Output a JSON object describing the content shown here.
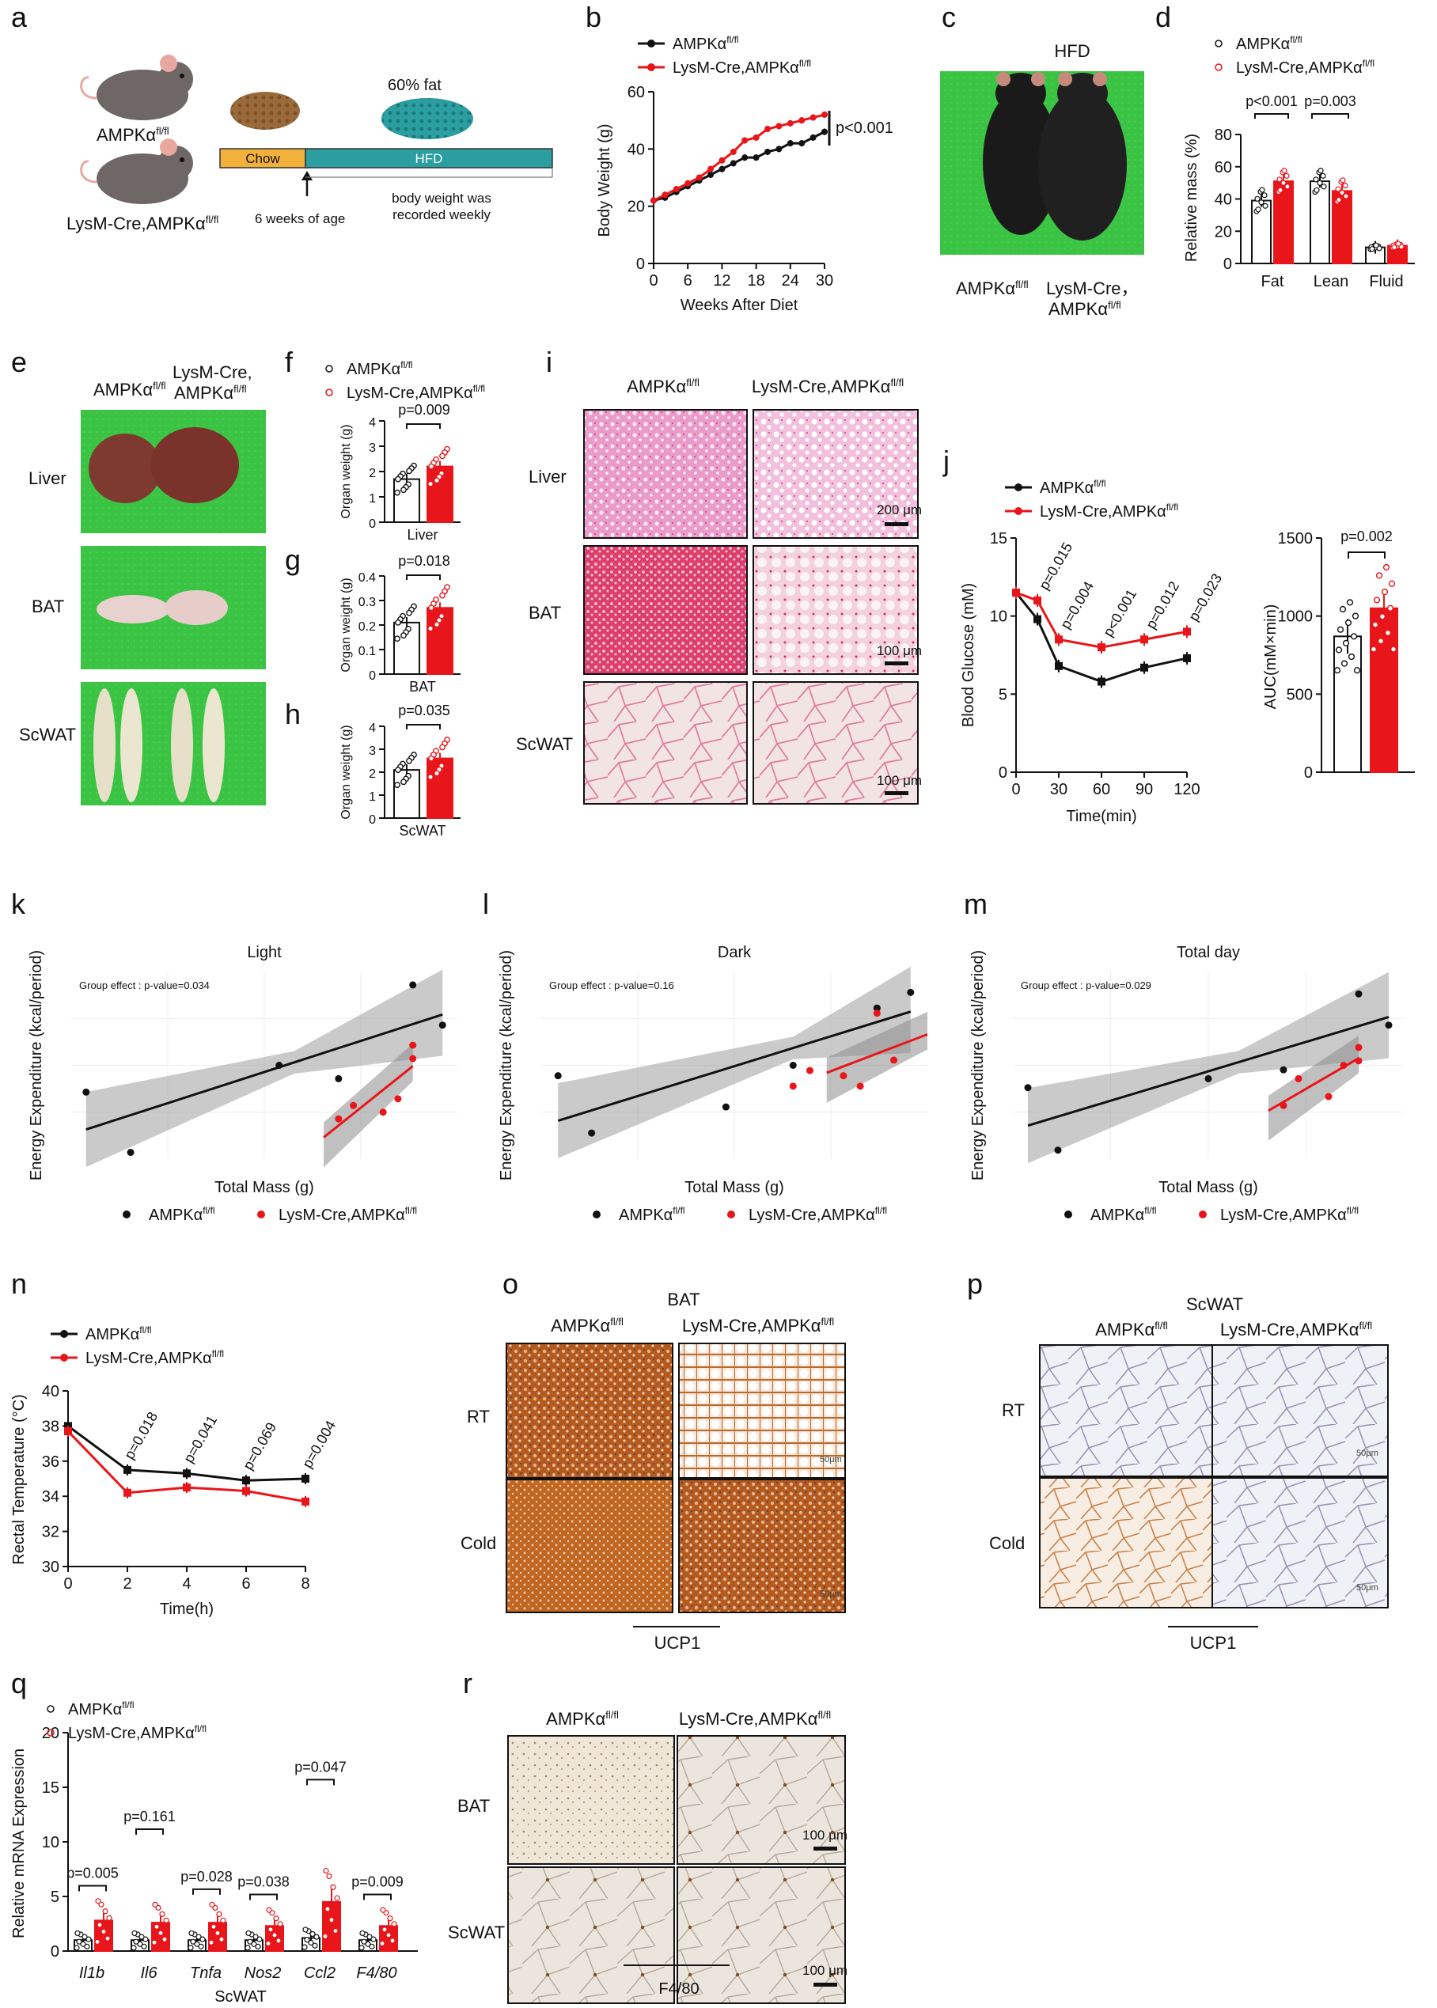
{
  "panels": [
    "a",
    "b",
    "c",
    "d",
    "e",
    "f",
    "g",
    "h",
    "i",
    "j",
    "k",
    "l",
    "m",
    "n",
    "o",
    "p",
    "q",
    "r"
  ],
  "fl": "fl/fl",
  "ampk": "AMPKα",
  "lysm": "LysM-Cre,AMPKα",
  "lysm_c": "LysM-Cre,",
  "lysm_cc": "LysM-Cre，",
  "colors": {
    "wt": "#111111",
    "ko": "#e8161b",
    "green": "#3bc443",
    "he_liver": "#e88ec2",
    "he_bat": "#d9325f",
    "brown": "#b5611d",
    "chow": "#f2b13a",
    "hfd": "#2a9ea0"
  },
  "a": {
    "fat": "60% fat",
    "chow": "Chow",
    "hfd": "HFD",
    "age": "6 weeks of age",
    "record": "body weight was recorded weekly"
  },
  "b": {
    "ylabel": "Body Weight (g)",
    "xlabel": "Weeks After Diet",
    "p": "p<0.001"
  },
  "c": {
    "title": "HFD"
  },
  "d": {
    "ylabel": "Relative mass (%)",
    "p1": "p<0.001",
    "p2": "p=0.003"
  },
  "e": {
    "rows": [
      "Liver",
      "BAT",
      "ScWAT"
    ]
  },
  "i": {
    "rows": [
      "Liver",
      "BAT",
      "ScWAT"
    ],
    "scales": [
      "200 μm",
      "100 μm",
      "100 μm"
    ]
  },
  "j": {
    "ylabel": "Blood Glucose (mM)",
    "xlabel": "Time(min)",
    "pvals": [
      "p=0.015",
      "p=0.004",
      "p<0.001",
      "p=0.012",
      "p=0.023"
    ],
    "auc_label": "AUC(mM×min)",
    "auc_p": "p=0.002"
  },
  "klm": {
    "ylabel": "Energy Expenditure (kcal/period)",
    "xlabel": "Total Mass (g)",
    "titles": [
      "Light",
      "Dark",
      "Total day"
    ],
    "stats": [
      "Group effect : p-value=0.034",
      "Group effect : p-value=0.16",
      "Group effect : p-value=0.029"
    ]
  },
  "n": {
    "ylabel": "Rectal Temperature (°C)",
    "xlabel": "Time(h)",
    "pvals": [
      "p=0.018",
      "p=0.041",
      "p=0.069",
      "p=0.004"
    ]
  },
  "o": {
    "title": "BAT",
    "rows": [
      "RT",
      "Cold"
    ],
    "stain": "UCP1",
    "scale": "50μm"
  },
  "p": {
    "title": "ScWAT",
    "rows": [
      "RT",
      "Cold"
    ],
    "stain": "UCP1",
    "scale": "50μm"
  },
  "q": {
    "ylabel": "Relative mRNA Expression",
    "xlabel": "ScWAT",
    "genes": [
      "Il1b",
      "Il6",
      "Tnfa",
      "Nos2",
      "Ccl2",
      "F4/80"
    ],
    "pvals": [
      "p=0.005",
      "p=0.161",
      "p=0.028",
      "p=0.038",
      "p=0.047",
      "p=0.009"
    ],
    "wt": [
      1.0,
      1.0,
      1.0,
      1.0,
      1.2,
      1.0
    ],
    "ko": [
      2.8,
      2.6,
      2.6,
      2.3,
      4.5,
      2.3
    ],
    "ylim": [
      0,
      20
    ]
  },
  "r": {
    "rows": [
      "BAT",
      "ScWAT"
    ],
    "stain": "F4/80",
    "scale": "100 μm"
  },
  "chart_data": [
    {
      "id": "b",
      "type": "line",
      "title": "",
      "xlabel": "Weeks After Diet",
      "ylabel": "Body Weight (g)",
      "x": [
        0,
        2,
        4,
        6,
        8,
        10,
        12,
        14,
        16,
        18,
        20,
        22,
        24,
        26,
        28,
        30
      ],
      "series": [
        {
          "name": "AMPKα fl/fl",
          "values": [
            22,
            23,
            25,
            27,
            29,
            31,
            33,
            35,
            37,
            37,
            39,
            40,
            42,
            42,
            44,
            46
          ]
        },
        {
          "name": "LysM-Cre,AMPKα fl/fl",
          "values": [
            22,
            24,
            26,
            28,
            30,
            33,
            36,
            39,
            43,
            44,
            47,
            48,
            49,
            50,
            51,
            52
          ]
        }
      ],
      "xlim": [
        0,
        30
      ],
      "ylim": [
        0,
        60
      ],
      "xticks": [
        0,
        6,
        12,
        18,
        24,
        30
      ],
      "yticks": [
        0,
        20,
        40,
        60
      ]
    },
    {
      "id": "d",
      "type": "bar",
      "categories": [
        "Fat",
        "Lean",
        "Fluid"
      ],
      "series": [
        {
          "name": "AMPKα fl/fl",
          "values": [
            39,
            51,
            10
          ]
        },
        {
          "name": "LysM-Cre,AMPKα fl/fl",
          "values": [
            51,
            45,
            11
          ]
        }
      ],
      "ylim": [
        0,
        80
      ],
      "yticks": [
        0,
        20,
        40,
        60,
        80
      ]
    },
    {
      "id": "f",
      "type": "bar",
      "categories": [
        "Liver"
      ],
      "ylabel": "Organ weight (g)",
      "p": "p=0.009",
      "series": [
        {
          "name": "AMPKα fl/fl",
          "values": [
            1.7
          ]
        },
        {
          "name": "LysM-Cre,AMPKα fl/fl",
          "values": [
            2.2
          ]
        }
      ],
      "ylim": [
        0,
        4
      ],
      "yticks": [
        0,
        1,
        2,
        3,
        4
      ]
    },
    {
      "id": "g",
      "type": "bar",
      "categories": [
        "BAT"
      ],
      "ylabel": "Organ weight (g)",
      "p": "p=0.018",
      "series": [
        {
          "name": "AMPKα fl/fl",
          "values": [
            0.21
          ]
        },
        {
          "name": "LysM-Cre,AMPKα fl/fl",
          "values": [
            0.27
          ]
        }
      ],
      "ylim": [
        0,
        0.4
      ],
      "yticks": [
        0.0,
        0.1,
        0.2,
        0.3,
        0.4
      ]
    },
    {
      "id": "h",
      "type": "bar",
      "categories": [
        "ScWAT"
      ],
      "ylabel": "Organ weight (g)",
      "p": "p=0.035",
      "series": [
        {
          "name": "AMPKα fl/fl",
          "values": [
            2.1
          ]
        },
        {
          "name": "LysM-Cre,AMPKα fl/fl",
          "values": [
            2.6
          ]
        }
      ],
      "ylim": [
        0,
        4
      ],
      "yticks": [
        0,
        1,
        2,
        3,
        4
      ]
    },
    {
      "id": "j",
      "type": "line",
      "xlabel": "Time(min)",
      "ylabel": "Blood Glucose (mM)",
      "x": [
        0,
        15,
        30,
        60,
        90,
        120
      ],
      "series": [
        {
          "name": "AMPKα fl/fl",
          "values": [
            11.5,
            9.8,
            6.8,
            5.8,
            6.7,
            7.3
          ]
        },
        {
          "name": "LysM-Cre,AMPKα fl/fl",
          "values": [
            11.5,
            11.0,
            8.5,
            8.0,
            8.5,
            9.0
          ]
        }
      ],
      "xlim": [
        0,
        120
      ],
      "ylim": [
        0,
        15
      ],
      "xticks": [
        0,
        30,
        60,
        90,
        120
      ],
      "yticks": [
        0,
        5,
        10,
        15
      ]
    },
    {
      "id": "j_auc",
      "type": "bar",
      "ylabel": "AUC(mM×min)",
      "series": [
        {
          "name": "AMPKα fl/fl",
          "values": [
            870
          ]
        },
        {
          "name": "LysM-Cre,AMPKα fl/fl",
          "values": [
            1050
          ]
        }
      ],
      "ylim": [
        0,
        1500
      ],
      "yticks": [
        0,
        500,
        1000,
        1500
      ]
    },
    {
      "id": "k",
      "type": "scatter",
      "title": "Light",
      "xlabel": "Total Mass (g)",
      "ylabel": "Energy Expenditure (kcal/period)",
      "wt": [
        [
          30,
          0.58
        ],
        [
          33,
          0.49
        ],
        [
          43,
          0.62
        ],
        [
          47,
          0.6
        ],
        [
          52,
          0.74
        ],
        [
          54,
          0.68
        ]
      ],
      "ko": [
        [
          47,
          0.54
        ],
        [
          48,
          0.56
        ],
        [
          50,
          0.55
        ],
        [
          51,
          0.57
        ],
        [
          52,
          0.63
        ],
        [
          52,
          0.65
        ]
      ],
      "xlim": [
        29,
        55
      ],
      "ylim": [
        0.48,
        0.76
      ]
    },
    {
      "id": "l",
      "type": "scatter",
      "title": "Dark",
      "xlabel": "Total Mass (g)",
      "ylabel": "Energy Expenditure (kcal/period)",
      "wt": [
        [
          30,
          0.66
        ],
        [
          32,
          0.55
        ],
        [
          40,
          0.6
        ],
        [
          44,
          0.68
        ],
        [
          49,
          0.79
        ],
        [
          51,
          0.82
        ]
      ],
      "ko": [
        [
          44,
          0.64
        ],
        [
          45,
          0.67
        ],
        [
          47,
          0.66
        ],
        [
          48,
          0.64
        ],
        [
          49,
          0.78
        ],
        [
          50,
          0.69
        ]
      ],
      "xlim": [
        29,
        52
      ],
      "ylim": [
        0.5,
        0.86
      ]
    },
    {
      "id": "m",
      "type": "scatter",
      "title": "Total day",
      "xlabel": "Total Mass (g)",
      "ylabel": "Energy Expenditure (kcal/period)",
      "wt": [
        [
          30,
          1.24
        ],
        [
          32,
          1.1
        ],
        [
          42,
          1.26
        ],
        [
          47,
          1.28
        ],
        [
          52,
          1.45
        ],
        [
          54,
          1.38
        ]
      ],
      "ko": [
        [
          47,
          1.2
        ],
        [
          48,
          1.26
        ],
        [
          50,
          1.22
        ],
        [
          51,
          1.29
        ],
        [
          52,
          1.3
        ],
        [
          52,
          1.33
        ]
      ],
      "xlim": [
        29,
        55
      ],
      "ylim": [
        1.08,
        1.5
      ]
    },
    {
      "id": "n",
      "type": "line",
      "xlabel": "Time(h)",
      "ylabel": "Rectal Temperature (°C)",
      "x": [
        0,
        2,
        4,
        6,
        8
      ],
      "series": [
        {
          "name": "AMPKα fl/fl",
          "values": [
            38.0,
            35.5,
            35.3,
            34.9,
            35.0
          ]
        },
        {
          "name": "LysM-Cre,AMPKα fl/fl",
          "values": [
            37.7,
            34.2,
            34.5,
            34.3,
            33.7
          ]
        }
      ],
      "xlim": [
        0,
        8
      ],
      "ylim": [
        30,
        40
      ],
      "xticks": [
        0,
        2,
        4,
        6,
        8
      ],
      "yticks": [
        30,
        32,
        34,
        36,
        38,
        40
      ]
    },
    {
      "id": "q",
      "type": "bar",
      "categories": [
        "Il1b",
        "Il6",
        "Tnfa",
        "Nos2",
        "Ccl2",
        "F4/80"
      ],
      "xlabel": "ScWAT",
      "ylabel": "Relative mRNA Expression",
      "series": [
        {
          "name": "AMPKα fl/fl",
          "values": [
            1.0,
            1.0,
            1.0,
            1.0,
            1.2,
            1.0
          ]
        },
        {
          "name": "LysM-Cre,AMPKα fl/fl",
          "values": [
            2.8,
            2.6,
            2.6,
            2.3,
            4.5,
            2.3
          ]
        }
      ],
      "ylim": [
        0,
        20
      ],
      "yticks": [
        0,
        5,
        10,
        15,
        20
      ]
    }
  ]
}
